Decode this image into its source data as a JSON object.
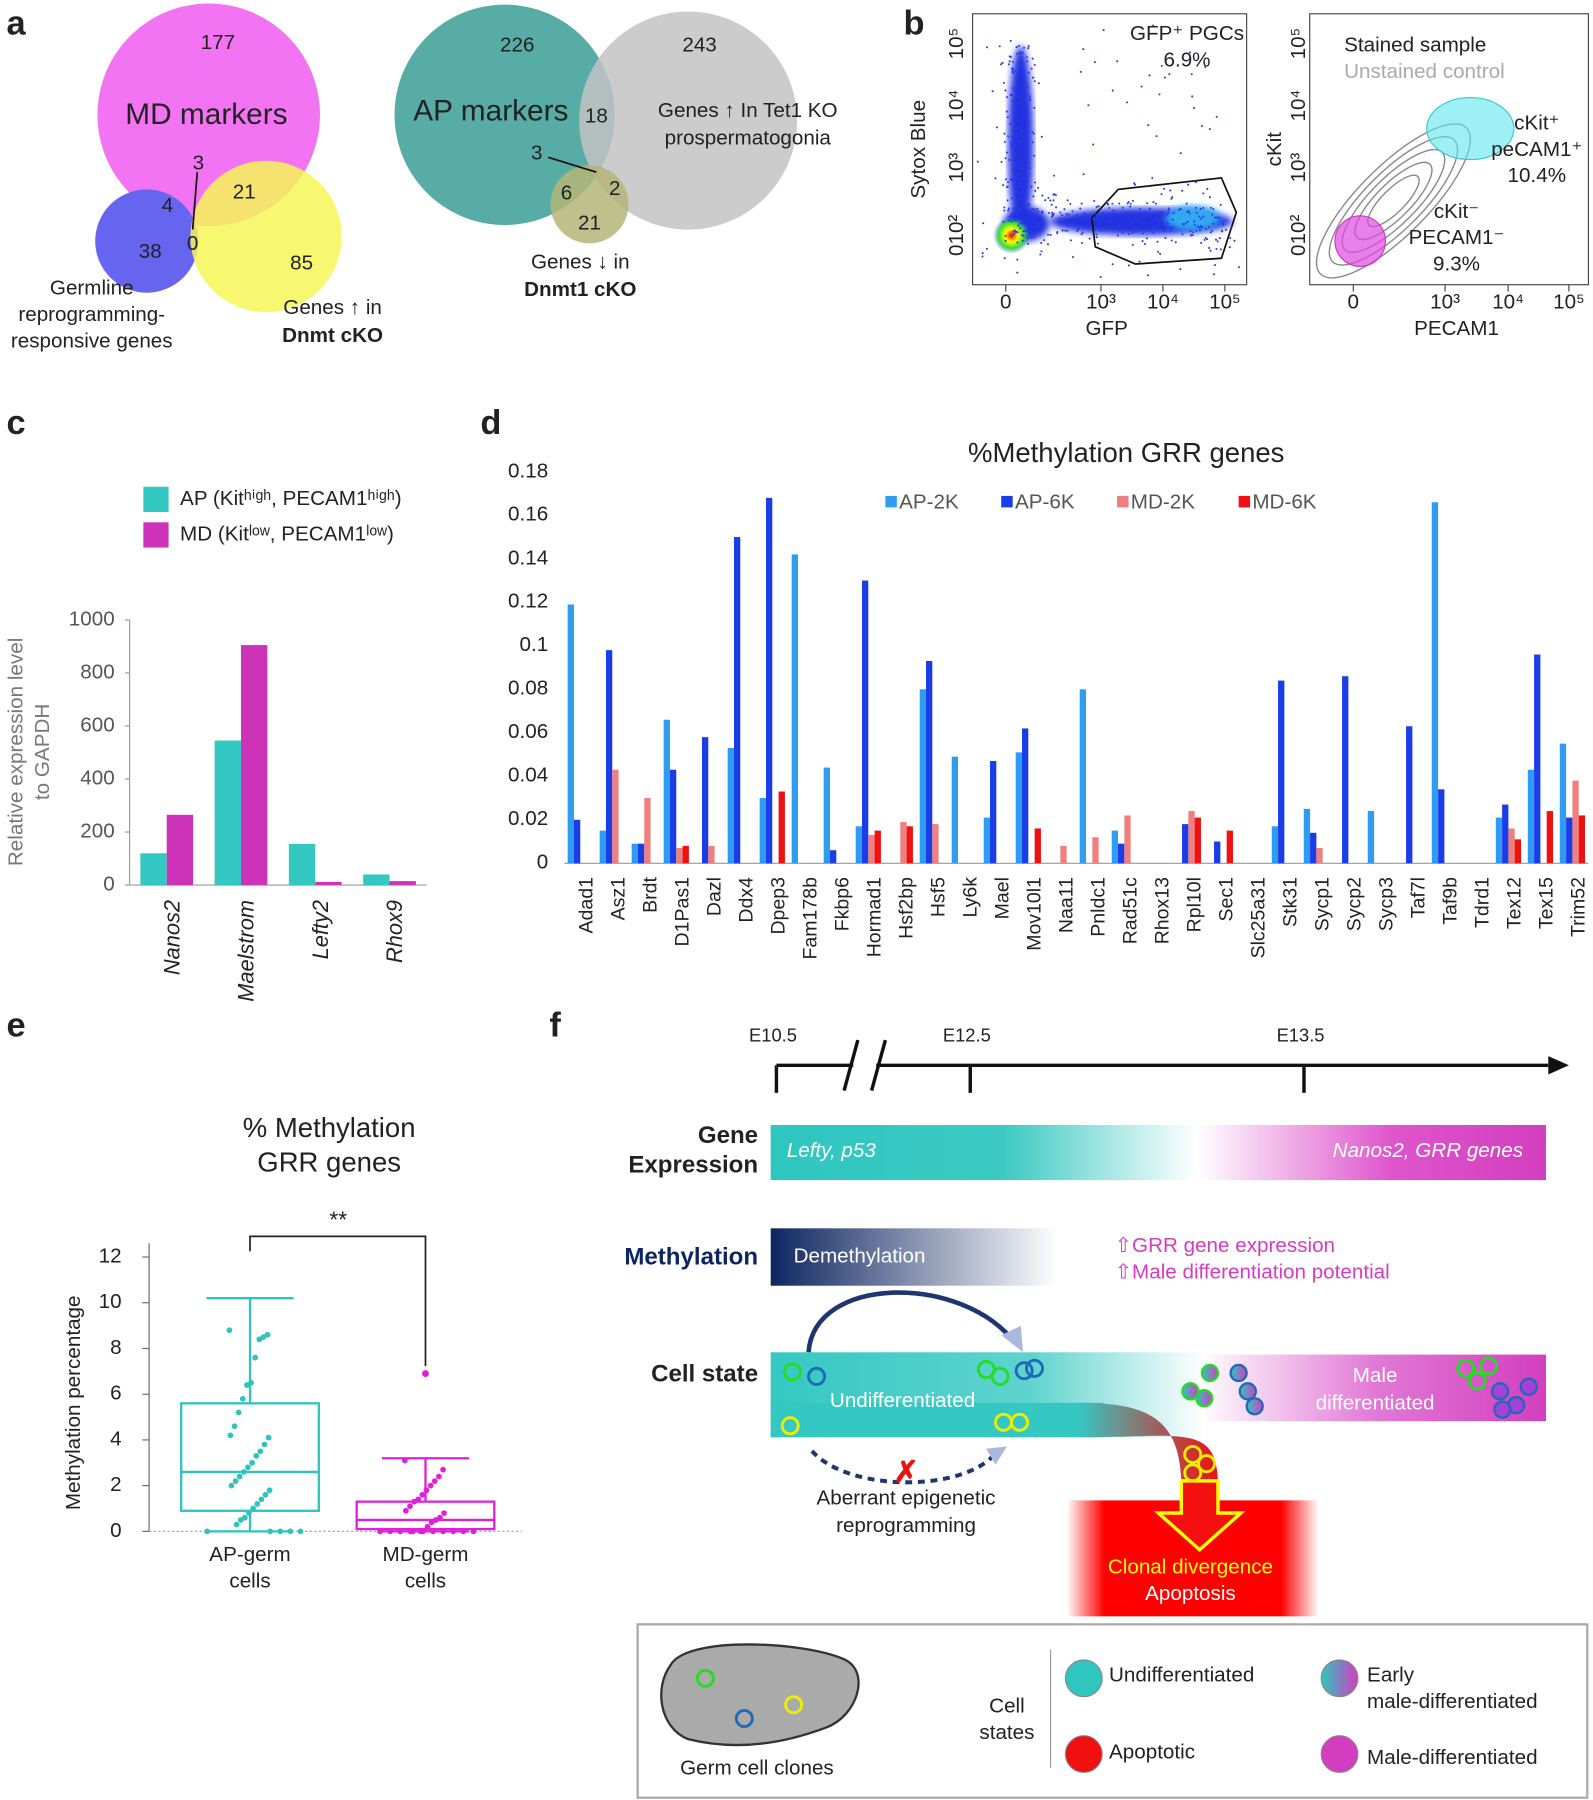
{
  "panel_labels": [
    "a",
    "b",
    "c",
    "d",
    "e",
    "f"
  ],
  "venn": [
    {
      "labels": [
        [
          "MD markers"
        ],
        [
          "Germline",
          "reprogramming-",
          "responsive genes"
        ],
        [
          "Genes ↑ in",
          "Dnmt cKO"
        ]
      ],
      "counts": [
        177,
        38,
        85,
        4,
        21,
        3,
        0
      ]
    },
    {
      "labels": [
        [
          "AP markers"
        ],
        [
          "Genes ↑ In Tet1 KO",
          "prospermatogonia"
        ],
        [
          "Genes ↓ in",
          "Dnmt1 cKO"
        ]
      ],
      "counts": [
        226,
        243,
        21,
        18,
        3,
        6,
        2
      ]
    }
  ],
  "flow": [
    {
      "y_label": "Sytox Blue",
      "x_label": "GFP",
      "xtick_labels": [
        "0",
        "10³",
        "10⁴",
        "10⁵"
      ],
      "ytick_labels": [
        "0",
        "10²",
        "10³",
        "10⁴",
        "10⁵"
      ],
      "gate_labels": [
        [
          "GFP⁺ PGCs",
          "6.9%"
        ]
      ]
    },
    {
      "y_label": "cKit",
      "x_label": "PECAM1",
      "xtick_labels": [
        "0",
        "10³",
        "10⁴",
        "10⁵"
      ],
      "ytick_labels": [
        "0",
        "10²",
        "10³",
        "10⁴",
        "10⁵"
      ],
      "legend": [
        "Stained sample",
        "Unstained control"
      ],
      "gate_labels": [
        [
          "cKit⁺",
          "peCAM1⁺",
          "10.4%"
        ],
        [
          "cKit⁻",
          "PECAM1⁻",
          "9.3%"
        ]
      ]
    }
  ],
  "chart_data": [
    {
      "type": "bar",
      "y_label": [
        "Relative expression level",
        "to GAPDH"
      ],
      "categories": [
        "Nanos2",
        "Maelstrom",
        "Lefty2",
        "Rhox9"
      ],
      "series": [
        {
          "name": "AP (Kitʰⁱᵍʰ, PECAM1ʰⁱᵍʰ)",
          "color": "#33c8c2",
          "values": [
            120,
            545,
            155,
            40
          ]
        },
        {
          "name": "MD (Kitˡᵒʷ, PECAM1ˡᵒʷ)",
          "color": "#cc33b8",
          "values": [
            265,
            905,
            12,
            15
          ]
        }
      ],
      "ylim": [
        0,
        1000
      ],
      "yticks": [
        0,
        200,
        400,
        600,
        800,
        1000
      ]
    },
    {
      "type": "bar",
      "title": "%Methylation GRR genes",
      "categories": [
        "Adad1",
        "Asz1",
        "Brdt",
        "D1Pas1",
        "Dazl",
        "Ddx4",
        "Dpep3",
        "Fam178b",
        "Fkbp6",
        "Hormad1",
        "Hsf2bp",
        "Hsf5",
        "Ly6k",
        "Mael",
        "Mov10l1",
        "Naa11",
        "Pnldc1",
        "Rad51c",
        "Rhox13",
        "Rpl10l",
        "Sec1",
        "Slc25a31",
        "Stk31",
        "Sycp1",
        "Sycp2",
        "Sycp3",
        "Taf7l",
        "Taf9b",
        "Tdrd1",
        "Tex12",
        "Tex15",
        "Trim52"
      ],
      "series": [
        {
          "name": "AP-2K",
          "color": "#2e9cf0",
          "values": [
            0.119,
            0.015,
            0.009,
            0.066,
            0,
            0.053,
            0.03,
            0.142,
            0.044,
            0.017,
            0,
            0.08,
            0.049,
            0.021,
            0.051,
            0,
            0.08,
            0.015,
            0,
            0,
            0,
            0,
            0.017,
            0.025,
            0,
            0.024,
            0,
            0.166,
            0,
            0.021,
            0.043,
            0.055
          ]
        },
        {
          "name": "AP-6K",
          "color": "#1a3de8",
          "values": [
            0.02,
            0.098,
            0.009,
            0.043,
            0.058,
            0.15,
            0.168,
            0,
            0.006,
            0.13,
            0,
            0.093,
            0,
            0.047,
            0.062,
            0,
            0,
            0.009,
            0,
            0.018,
            0.01,
            0,
            0.084,
            0.014,
            0.086,
            0,
            0.063,
            0.034,
            0,
            0.027,
            0.096,
            0.021
          ]
        },
        {
          "name": "MD-2K",
          "color": "#f08080",
          "values": [
            0,
            0.043,
            0.03,
            0.007,
            0.008,
            0,
            0,
            0,
            0,
            0.013,
            0.019,
            0.018,
            0,
            0,
            0,
            0.008,
            0.012,
            0.022,
            0,
            0.024,
            0,
            0,
            0,
            0.007,
            0,
            0,
            0,
            0,
            0,
            0.016,
            0,
            0.038
          ]
        },
        {
          "name": "MD-6K",
          "color": "#ee1111",
          "values": [
            0,
            0,
            0,
            0.008,
            0,
            0,
            0.033,
            0,
            0,
            0.015,
            0.017,
            0,
            0,
            0,
            0.016,
            0,
            0,
            0,
            0,
            0.021,
            0.015,
            0,
            0,
            0,
            0,
            0,
            0,
            0,
            0,
            0.011,
            0.024,
            0.022
          ]
        }
      ],
      "ylim": [
        0,
        0.18
      ],
      "yticks": [
        0,
        0.02,
        0.04,
        0.06,
        0.08,
        0.1,
        0.12,
        0.14,
        0.16,
        0.18
      ]
    },
    {
      "type": "box",
      "title": [
        "% Methylation",
        "GRR genes"
      ],
      "y_label": "Methylation percentage",
      "categories": [
        [
          "AP-germ",
          "cells"
        ],
        [
          "MD-germ",
          "cells"
        ]
      ],
      "boxes": [
        {
          "color": "#2ec4bd",
          "whisker_low": 0,
          "q1": 0.9,
          "median": 2.6,
          "q3": 5.6,
          "whisker_high": 10.2,
          "outliers": [],
          "points": [
            8.8,
            8.6,
            8.5,
            8.4,
            7.6,
            6.5,
            6.4,
            5.8,
            5.2,
            4.6,
            4.2,
            4.1,
            3.8,
            3.5,
            3.3,
            3.0,
            2.8,
            2.6,
            2.4,
            2.2,
            2.0,
            1.8,
            1.6,
            1.4,
            1.2,
            1.0,
            0.8,
            0.6,
            0.5,
            0.3,
            0,
            0,
            0,
            0,
            0
          ]
        },
        {
          "color": "#e020d8",
          "whisker_low": 0,
          "q1": 0.1,
          "median": 0.5,
          "q3": 1.3,
          "whisker_high": 3.2,
          "outliers": [
            6.9
          ],
          "points": [
            3.1,
            2.7,
            2.4,
            2.2,
            2.0,
            1.8,
            1.6,
            1.4,
            1.3,
            1.1,
            0.9,
            0.8,
            0.6,
            0.5,
            0.4,
            0.2,
            0,
            0,
            0,
            0,
            0,
            0,
            0,
            0,
            0,
            0,
            0,
            0
          ]
        }
      ],
      "ylim": [
        0,
        12
      ],
      "yticks": [
        0,
        2,
        4,
        6,
        8,
        10,
        12
      ],
      "annotation": "**"
    }
  ],
  "diagram": {
    "timeline": [
      "E10.5",
      "E12.5",
      "E13.5"
    ],
    "gene_expression": {
      "label": [
        "Gene",
        "Expression"
      ],
      "early": "Lefty, p53",
      "late": "Nanos2, GRR genes"
    },
    "methylation": {
      "label": "Methylation",
      "bar": "Demethylation",
      "notes": [
        "⇧GRR gene expression",
        "⇧Male differentiation potential"
      ]
    },
    "cell_state": {
      "label": "Cell state",
      "undifferentiated": "Undifferentiated",
      "male": [
        "Male",
        "differentiated"
      ],
      "aberrant": [
        "Aberrant epigenetic",
        "reprogramming"
      ],
      "outcome": [
        "Clonal divergence",
        "Apoptosis"
      ]
    },
    "legend": {
      "clones": "Germ cell clones",
      "states_title": [
        "Cell",
        "states"
      ],
      "states": [
        [
          "Undifferentiated"
        ],
        [
          "Apoptotic"
        ],
        [
          "Early",
          "male-differentiated"
        ],
        [
          "Male-differentiated"
        ]
      ]
    }
  }
}
